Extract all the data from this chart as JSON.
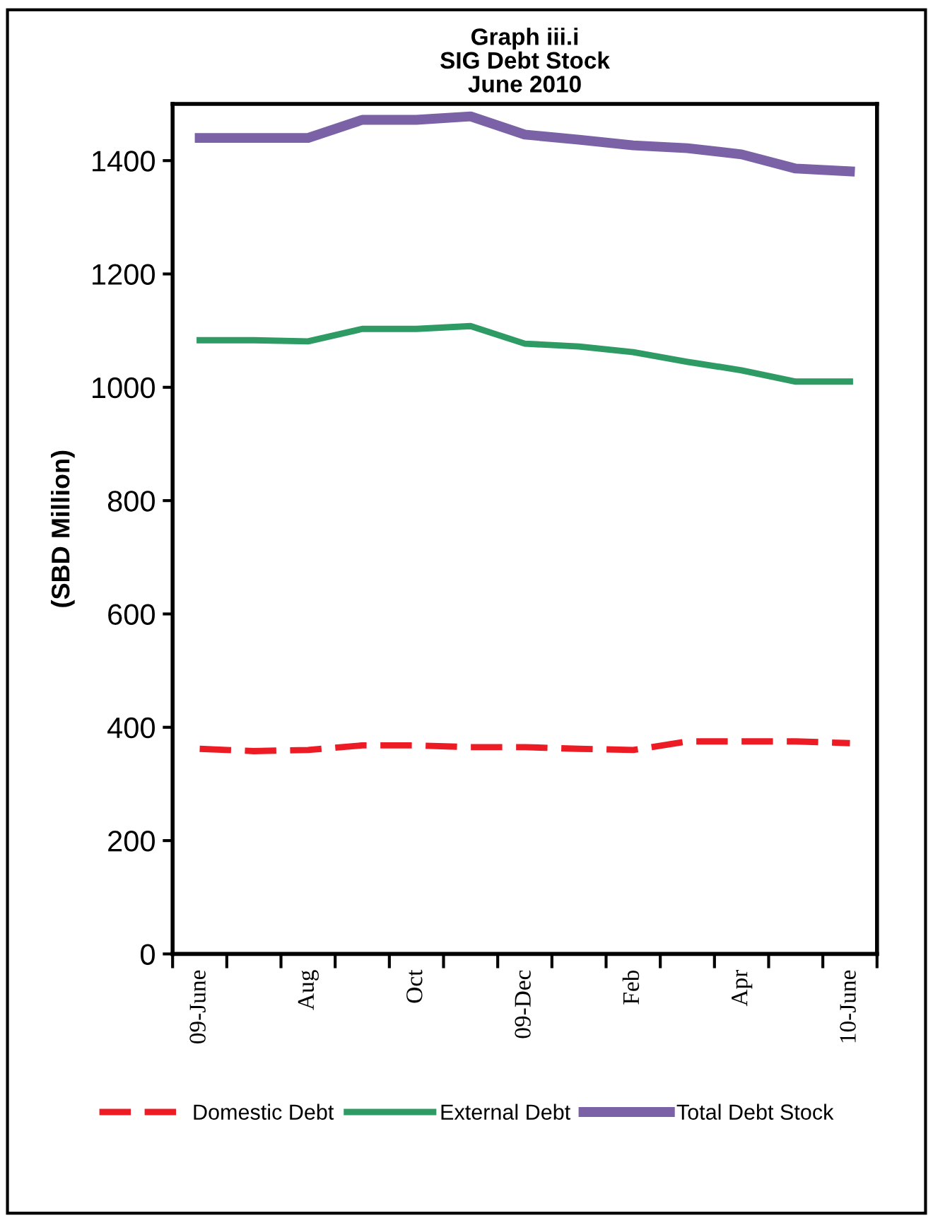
{
  "chart_data": {
    "type": "line",
    "title": "Graph iii.i\nSIG Debt Stock\nJune 2010",
    "ylabel": "(SBD Million)",
    "categories": [
      "09-June",
      null,
      "Aug",
      null,
      "Oct",
      null,
      "09-Dec",
      null,
      "Feb",
      null,
      "Apr",
      null,
      "10-June"
    ],
    "ylim": [
      0,
      1500
    ],
    "yticks": [
      0,
      200,
      400,
      600,
      800,
      1000,
      1200,
      1400
    ],
    "grid": false,
    "legend": "bottom",
    "series": [
      {
        "name": "Domestic Debt",
        "color": "#ed1c24",
        "line_style": "dashed",
        "values": [
          362,
          358,
          360,
          368,
          368,
          365,
          365,
          362,
          360,
          375,
          375,
          375,
          372
        ]
      },
      {
        "name": "External Debt",
        "color": "#2e9b64",
        "line_style": "solid",
        "values": [
          1083,
          1083,
          1081,
          1103,
          1103,
          1108,
          1077,
          1072,
          1062,
          1045,
          1030,
          1010,
          1010
        ]
      },
      {
        "name": "Total Debt Stock",
        "color": "#7b62a6",
        "line_style": "solid",
        "values": [
          1440,
          1440,
          1440,
          1472,
          1472,
          1478,
          1446,
          1437,
          1427,
          1422,
          1411,
          1386,
          1381
        ]
      }
    ]
  }
}
